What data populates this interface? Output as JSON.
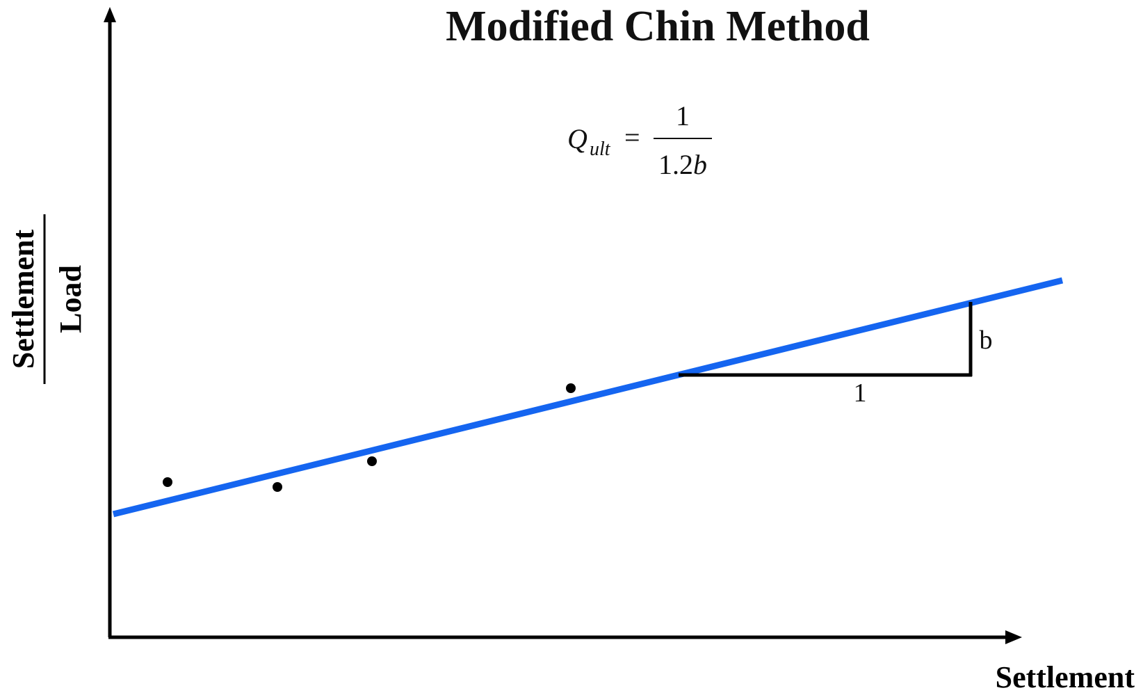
{
  "diagram": {
    "title": "Modified Chin Method",
    "y_axis": {
      "numerator": "Settlement",
      "denominator": "Load"
    },
    "x_axis": {
      "label": "Settlement"
    },
    "formula": {
      "lhs_symbol": "Q",
      "lhs_subscript": "ult",
      "equals": "=",
      "numerator": "1",
      "denominator_coef": "1.2",
      "denominator_var": "b"
    },
    "slope_triangle": {
      "run_label": "1",
      "rise_label": "b"
    },
    "colors": {
      "fit_line": "#1565f0",
      "axes": "#000000",
      "points": "#000000",
      "triangle": "#000000"
    }
  }
}
